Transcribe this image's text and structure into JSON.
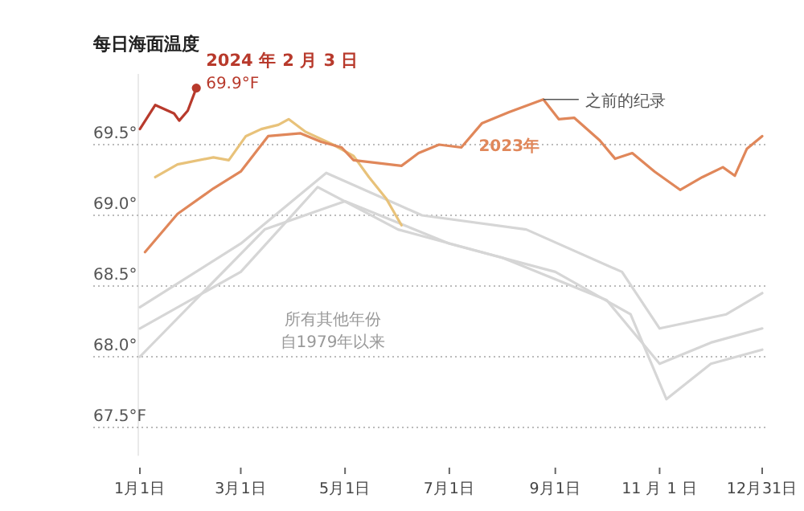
{
  "chart_data": {
    "type": "line",
    "title": "每日海面温度",
    "xlim": [
      "--01-01",
      "--12-31"
    ],
    "xticks": [
      {
        "value": "--01-01",
        "label": "1月1日"
      },
      {
        "value": "--03-01",
        "label": "3月1日"
      },
      {
        "value": "--05-01",
        "label": "5月1日"
      },
      {
        "value": "--07-01",
        "label": "7月1日"
      },
      {
        "value": "--09-01",
        "label": "9月1日"
      },
      {
        "value": "--11-01",
        "label": "11 月 1 日"
      },
      {
        "value": "--12-31",
        "label": "12月31日"
      }
    ],
    "ylim": [
      67.3,
      70.0
    ],
    "yticks": [
      {
        "value": 67.5,
        "label": "67.5°F"
      },
      {
        "value": 68.0,
        "label": "68.0°"
      },
      {
        "value": 68.5,
        "label": "68.5°"
      },
      {
        "value": 69.0,
        "label": "69.0°"
      },
      {
        "value": 69.5,
        "label": "69.5°"
      }
    ],
    "grid": "y",
    "line_style": "solid",
    "series": [
      {
        "color": "#d6d6d6",
        "x": [
          "--01-01",
          "--03-01",
          "--04-15",
          "--06-01",
          "--08-01",
          "--10-01",
          "--11-01",
          "--12-01",
          "--12-31"
        ],
        "values": [
          68.2,
          68.6,
          69.2,
          68.9,
          68.7,
          68.4,
          67.95,
          68.1,
          68.2
        ]
      },
      {
        "color": "#d6d6d6",
        "x": [
          "--01-01",
          "--03-15",
          "--05-01",
          "--07-01",
          "--09-01",
          "--10-15",
          "--11-05",
          "--12-01",
          "--12-31"
        ],
        "values": [
          68.0,
          68.9,
          69.1,
          68.8,
          68.6,
          68.3,
          67.7,
          67.95,
          68.05
        ]
      },
      {
        "color": "#d6d6d6",
        "x": [
          "--01-01",
          "--03-01",
          "--04-20",
          "--06-15",
          "--08-15",
          "--10-10",
          "--11-01",
          "--12-10",
          "--12-31"
        ],
        "values": [
          68.35,
          68.8,
          69.3,
          69.0,
          68.9,
          68.6,
          68.2,
          68.3,
          68.45
        ]
      },
      {
        "color": "#e8c27a",
        "x": [
          "--01-10",
          "--01-23",
          "--02-13",
          "--02-22",
          "--03-04",
          "--03-13",
          "--03-23",
          "--03-29",
          "--04-08",
          "--04-24",
          "--05-06",
          "--05-15",
          "--05-25",
          "--06-03"
        ],
        "values": [
          69.27,
          69.36,
          69.41,
          69.39,
          69.56,
          69.61,
          69.64,
          69.68,
          69.59,
          69.5,
          69.42,
          69.27,
          69.12,
          68.93
        ]
      },
      {
        "name": "2023年",
        "color": "#e0875a",
        "x": [
          "--01-04",
          "--01-23",
          "--02-13",
          "--03-01",
          "--03-17",
          "--04-05",
          "--04-17",
          "--04-29",
          "--05-06",
          "--06-03",
          "--06-13",
          "--06-25",
          "--07-08",
          "--07-20",
          "--08-05",
          "--08-25",
          "--09-03",
          "--09-12",
          "--09-27",
          "--10-06",
          "--10-16",
          "--10-29",
          "--11-13",
          "--11-26",
          "--12-08",
          "--12-15",
          "--12-22",
          "--12-31"
        ],
        "values": [
          68.74,
          69.01,
          69.19,
          69.31,
          69.56,
          69.58,
          69.52,
          69.48,
          69.39,
          69.35,
          69.44,
          69.5,
          69.48,
          69.65,
          69.73,
          69.82,
          69.68,
          69.69,
          69.53,
          69.4,
          69.44,
          69.31,
          69.18,
          69.27,
          69.34,
          69.28,
          69.47,
          69.56
        ]
      },
      {
        "color": "#b83a2c",
        "x": [
          "--01-01",
          "--01-10",
          "--01-21",
          "--01-24",
          "--01-29",
          "--02-03"
        ],
        "values": [
          69.61,
          69.78,
          69.72,
          69.67,
          69.74,
          69.9
        ]
      }
    ],
    "annotations": [
      {
        "text": "2024 年 2 月 3 日",
        "x": "--02-03",
        "y": 69.9
      },
      {
        "text": "69.9°F",
        "x": "--02-03",
        "y": 69.9
      },
      {
        "text": "之前的纪录",
        "x": "--08-25",
        "y": 69.82
      },
      "所有其他年份",
      "自1979年以来"
    ]
  }
}
